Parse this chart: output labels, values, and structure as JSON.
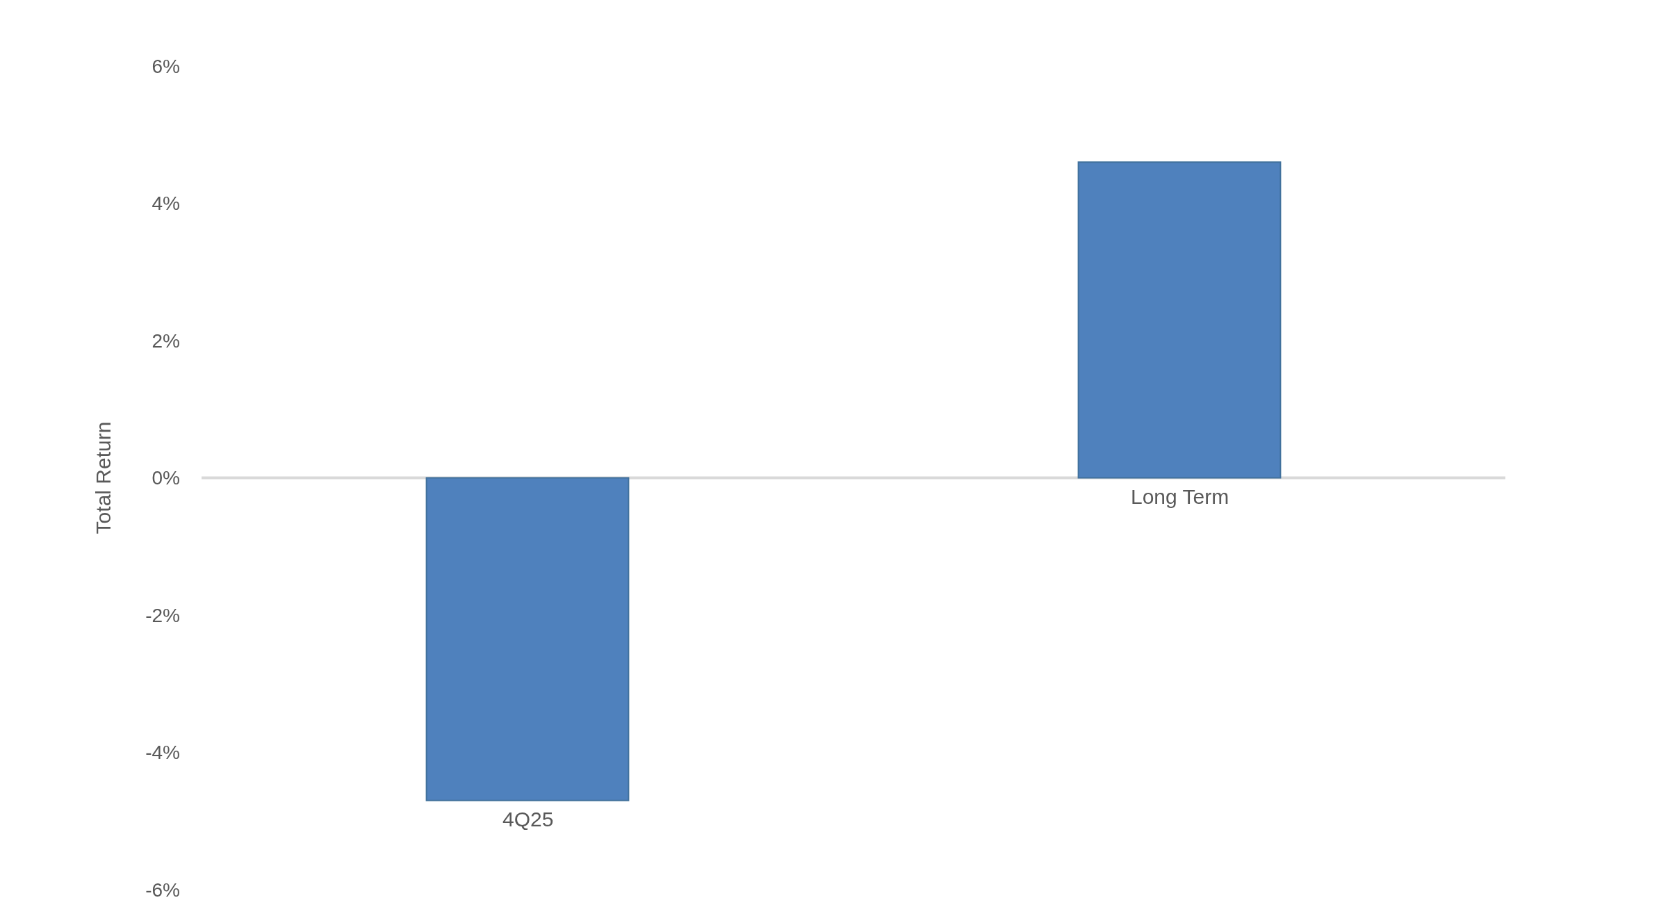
{
  "chart_data": {
    "type": "bar",
    "ylabel": "Total Return",
    "categories": [
      "4Q25",
      "Long Term"
    ],
    "values": [
      -4.7,
      4.6
    ],
    "color": "#4f81bd",
    "ylim": [
      -6,
      6
    ],
    "yticks": [
      {
        "value": -6,
        "label": "-6%"
      },
      {
        "value": -4,
        "label": "-4%"
      },
      {
        "value": -2,
        "label": "-2%"
      },
      {
        "value": 0,
        "label": "0%"
      },
      {
        "value": 2,
        "label": "2%"
      },
      {
        "value": 4,
        "label": "4%"
      },
      {
        "value": 6,
        "label": "6%"
      }
    ],
    "ref_lines": [
      {
        "axis": "y",
        "value": 0,
        "color": "#d9d9d9"
      }
    ]
  }
}
